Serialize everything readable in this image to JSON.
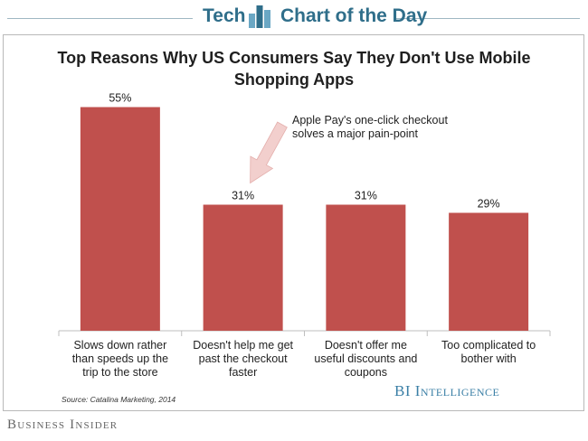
{
  "header": {
    "left_text": "Tech",
    "right_text": "Chart of the Day"
  },
  "chart_data": {
    "type": "bar",
    "title": "Top Reasons Why US Consumers Say They Don't Use Mobile Shopping Apps",
    "categories": [
      "Slows down rather than speeds up the trip to the store",
      "Doesn't help me get past the checkout faster",
      "Doesn't offer me useful discounts and coupons",
      "Too complicated to bother with"
    ],
    "values": [
      55,
      31,
      31,
      29
    ],
    "value_labels": [
      "55%",
      "31%",
      "31%",
      "29%"
    ],
    "ylim": [
      0,
      60
    ],
    "grid": false,
    "bar_color": "#c0504d",
    "annotation": "Apple Pay's one-click checkout solves a major pain-point",
    "annotation_target": "Doesn't help me get past the checkout faster"
  },
  "source": "Source: Catalina Marketing, 2014",
  "brand": {
    "intelligence": "BI Intelligence",
    "footer": "Business Insider"
  },
  "colors": {
    "accent": "#2f6e8a",
    "bar": "#c0504d",
    "arrow": "#f2cfcd"
  },
  "icons": {
    "banner_logo": "bar-chart-icon"
  }
}
